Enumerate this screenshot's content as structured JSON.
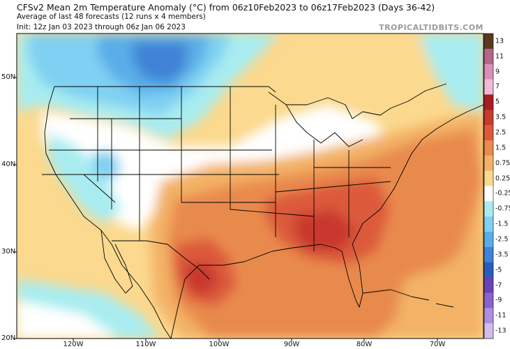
{
  "title": {
    "line1": "CFSv2 Mean 2m Temperature Anomaly (°C) from 06z10Feb2023 to 06z17Feb2023 (Days 36-42)",
    "line2": "Average of last 48 forecasts (12 runs x 4 members)",
    "line3": "Init: 12z Jan 03 2023 through 06z Jan 06 2023"
  },
  "credit": "TROPICALTIDBITS.COM",
  "axes": {
    "lat_labels": [
      "50N",
      "40N",
      "30N",
      "20N"
    ],
    "lon_labels": [
      "120W",
      "110W",
      "100W",
      "90W",
      "80W",
      "70W"
    ]
  },
  "colorbar": {
    "labels": [
      "13",
      "11",
      "9",
      "7",
      "5",
      "3.5",
      "2.5",
      "1.5",
      "0.75",
      "0.25",
      "-0.25",
      "-0.75",
      "-1.5",
      "-2.5",
      "-3.5",
      "-5",
      "-7",
      "-9",
      "-11",
      "-13"
    ],
    "colors": [
      "#5a3a1e",
      "#b5658a",
      "#d98fb8",
      "#f0b9d6",
      "#a81c22",
      "#c8392e",
      "#dc5a3a",
      "#e98a4e",
      "#f3b266",
      "#fbd98e",
      "#ffffff",
      "#a8ecf0",
      "#7fd0f2",
      "#5aaee8",
      "#3f83d6",
      "#2a5cbb",
      "#6a42b8",
      "#8c62cc",
      "#b08ee0",
      "#d2bdee"
    ],
    "unit": "°C"
  }
}
